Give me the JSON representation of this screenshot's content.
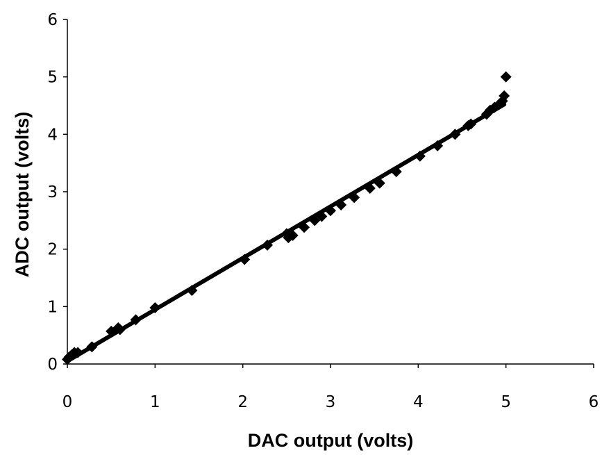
{
  "chart_data": {
    "type": "scatter",
    "title": "",
    "xlabel": "DAC output (volts)",
    "ylabel": "ADC output (volts)",
    "xlim": [
      0,
      6
    ],
    "ylim": [
      0,
      6
    ],
    "x_ticks": [
      0,
      1,
      2,
      3,
      4,
      5,
      6
    ],
    "y_ticks": [
      0,
      1,
      2,
      3,
      4,
      5,
      6
    ],
    "x_tick_labels": [
      "0",
      "1",
      "2",
      "3",
      "4",
      "5",
      "6"
    ],
    "y_tick_labels": [
      "0",
      "1",
      "2",
      "3",
      "4",
      "5",
      "6"
    ],
    "grid": false,
    "legend": false,
    "marker_color": "#000000",
    "series": [
      {
        "points": [
          [
            0.0,
            0.08
          ],
          [
            0.02,
            0.12
          ],
          [
            0.05,
            0.16
          ],
          [
            0.08,
            0.2
          ],
          [
            0.12,
            0.2
          ],
          [
            0.28,
            0.3
          ],
          [
            0.5,
            0.57
          ],
          [
            0.58,
            0.63
          ],
          [
            0.6,
            0.6
          ],
          [
            0.78,
            0.77
          ],
          [
            1.0,
            0.98
          ],
          [
            1.42,
            1.28
          ],
          [
            2.02,
            1.82
          ],
          [
            2.28,
            2.07
          ],
          [
            2.5,
            2.27
          ],
          [
            2.52,
            2.2
          ],
          [
            2.57,
            2.24
          ],
          [
            2.7,
            2.38
          ],
          [
            2.82,
            2.5
          ],
          [
            2.9,
            2.57
          ],
          [
            3.0,
            2.67
          ],
          [
            3.12,
            2.77
          ],
          [
            3.27,
            2.9
          ],
          [
            3.45,
            3.06
          ],
          [
            3.56,
            3.15
          ],
          [
            3.75,
            3.35
          ],
          [
            4.02,
            3.62
          ],
          [
            4.22,
            3.8
          ],
          [
            4.42,
            4.0
          ],
          [
            4.57,
            4.15
          ],
          [
            4.6,
            4.18
          ],
          [
            4.78,
            4.35
          ],
          [
            4.82,
            4.42
          ],
          [
            4.87,
            4.47
          ],
          [
            4.92,
            4.52
          ],
          [
            4.96,
            4.58
          ],
          [
            4.98,
            4.67
          ],
          [
            5.0,
            5.0
          ]
        ]
      }
    ],
    "trendline": {
      "x": [
        0.0,
        4.98
      ],
      "y": [
        0.05,
        4.52
      ]
    }
  }
}
